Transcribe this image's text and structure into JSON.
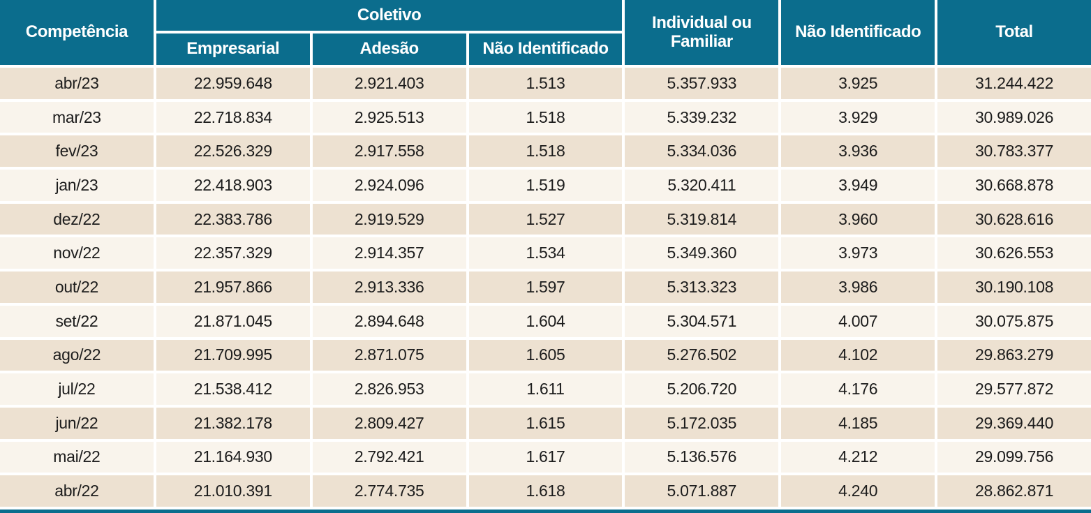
{
  "colors": {
    "header_bg": "#0b6d8d",
    "header_fg": "#ffffff",
    "row_odd": "#ede1d1",
    "row_even": "#f9f4ec",
    "cell_fg": "#1c1c1c",
    "divider": "#ffffff"
  },
  "table": {
    "header": {
      "competencia": "Competência",
      "coletivo_group": "Coletivo",
      "sub_empresarial": "Empresarial",
      "sub_adesao": "Adesão",
      "sub_nao_identificado": "Não Identificado",
      "individual_ou_familiar": "Individual ou Familiar",
      "nao_identificado": "Não Identificado",
      "total": "Total"
    },
    "rows": [
      [
        "abr/23",
        "22.959.648",
        "2.921.403",
        "1.513",
        "5.357.933",
        "3.925",
        "31.244.422"
      ],
      [
        "mar/23",
        "22.718.834",
        "2.925.513",
        "1.518",
        "5.339.232",
        "3.929",
        "30.989.026"
      ],
      [
        "fev/23",
        "22.526.329",
        "2.917.558",
        "1.518",
        "5.334.036",
        "3.936",
        "30.783.377"
      ],
      [
        "jan/23",
        "22.418.903",
        "2.924.096",
        "1.519",
        "5.320.411",
        "3.949",
        "30.668.878"
      ],
      [
        "dez/22",
        "22.383.786",
        "2.919.529",
        "1.527",
        "5.319.814",
        "3.960",
        "30.628.616"
      ],
      [
        "nov/22",
        "22.357.329",
        "2.914.357",
        "1.534",
        "5.349.360",
        "3.973",
        "30.626.553"
      ],
      [
        "out/22",
        "21.957.866",
        "2.913.336",
        "1.597",
        "5.313.323",
        "3.986",
        "30.190.108"
      ],
      [
        "set/22",
        "21.871.045",
        "2.894.648",
        "1.604",
        "5.304.571",
        "4.007",
        "30.075.875"
      ],
      [
        "ago/22",
        "21.709.995",
        "2.871.075",
        "1.605",
        "5.276.502",
        "4.102",
        "29.863.279"
      ],
      [
        "jul/22",
        "21.538.412",
        "2.826.953",
        "1.611",
        "5.206.720",
        "4.176",
        "29.577.872"
      ],
      [
        "jun/22",
        "21.382.178",
        "2.809.427",
        "1.615",
        "5.172.035",
        "4.185",
        "29.369.440"
      ],
      [
        "mai/22",
        "21.164.930",
        "2.792.421",
        "1.617",
        "5.136.576",
        "4.212",
        "29.099.756"
      ],
      [
        "abr/22",
        "21.010.391",
        "2.774.735",
        "1.618",
        "5.071.887",
        "4.240",
        "28.862.871"
      ]
    ]
  },
  "chart_data": {
    "type": "table",
    "title": "",
    "column_groups": [
      {
        "label": "Coletivo",
        "spans": [
          "Empresarial",
          "Adesão",
          "Não Identificado"
        ]
      }
    ],
    "columns": [
      "Competência",
      "Coletivo – Empresarial",
      "Coletivo – Adesão",
      "Coletivo – Não Identificado",
      "Individual ou Familiar",
      "Não Identificado",
      "Total"
    ],
    "rows": [
      [
        "abr/23",
        22959648,
        2921403,
        1513,
        5357933,
        3925,
        31244422
      ],
      [
        "mar/23",
        22718834,
        2925513,
        1518,
        5339232,
        3929,
        30989026
      ],
      [
        "fev/23",
        22526329,
        2917558,
        1518,
        5334036,
        3936,
        30783377
      ],
      [
        "jan/23",
        22418903,
        2924096,
        1519,
        5320411,
        3949,
        30668878
      ],
      [
        "dez/22",
        22383786,
        2919529,
        1527,
        5319814,
        3960,
        30628616
      ],
      [
        "nov/22",
        22357329,
        2914357,
        1534,
        5349360,
        3973,
        30626553
      ],
      [
        "out/22",
        21957866,
        2913336,
        1597,
        5313323,
        3986,
        30190108
      ],
      [
        "set/22",
        21871045,
        2894648,
        1604,
        5304571,
        4007,
        30075875
      ],
      [
        "ago/22",
        21709995,
        2871075,
        1605,
        5276502,
        4102,
        29863279
      ],
      [
        "jul/22",
        21538412,
        2826953,
        1611,
        5206720,
        4176,
        29577872
      ],
      [
        "jun/22",
        21382178,
        2809427,
        1615,
        5172035,
        4185,
        29369440
      ],
      [
        "mai/22",
        21164930,
        2792421,
        1617,
        5136576,
        4212,
        29099756
      ],
      [
        "abr/22",
        21010391,
        2774735,
        1618,
        5071887,
        4240,
        28862871
      ]
    ],
    "number_format": "pt-BR thousands separator (.)",
    "row_striping": [
      "#ede1d1",
      "#f9f4ec"
    ]
  }
}
